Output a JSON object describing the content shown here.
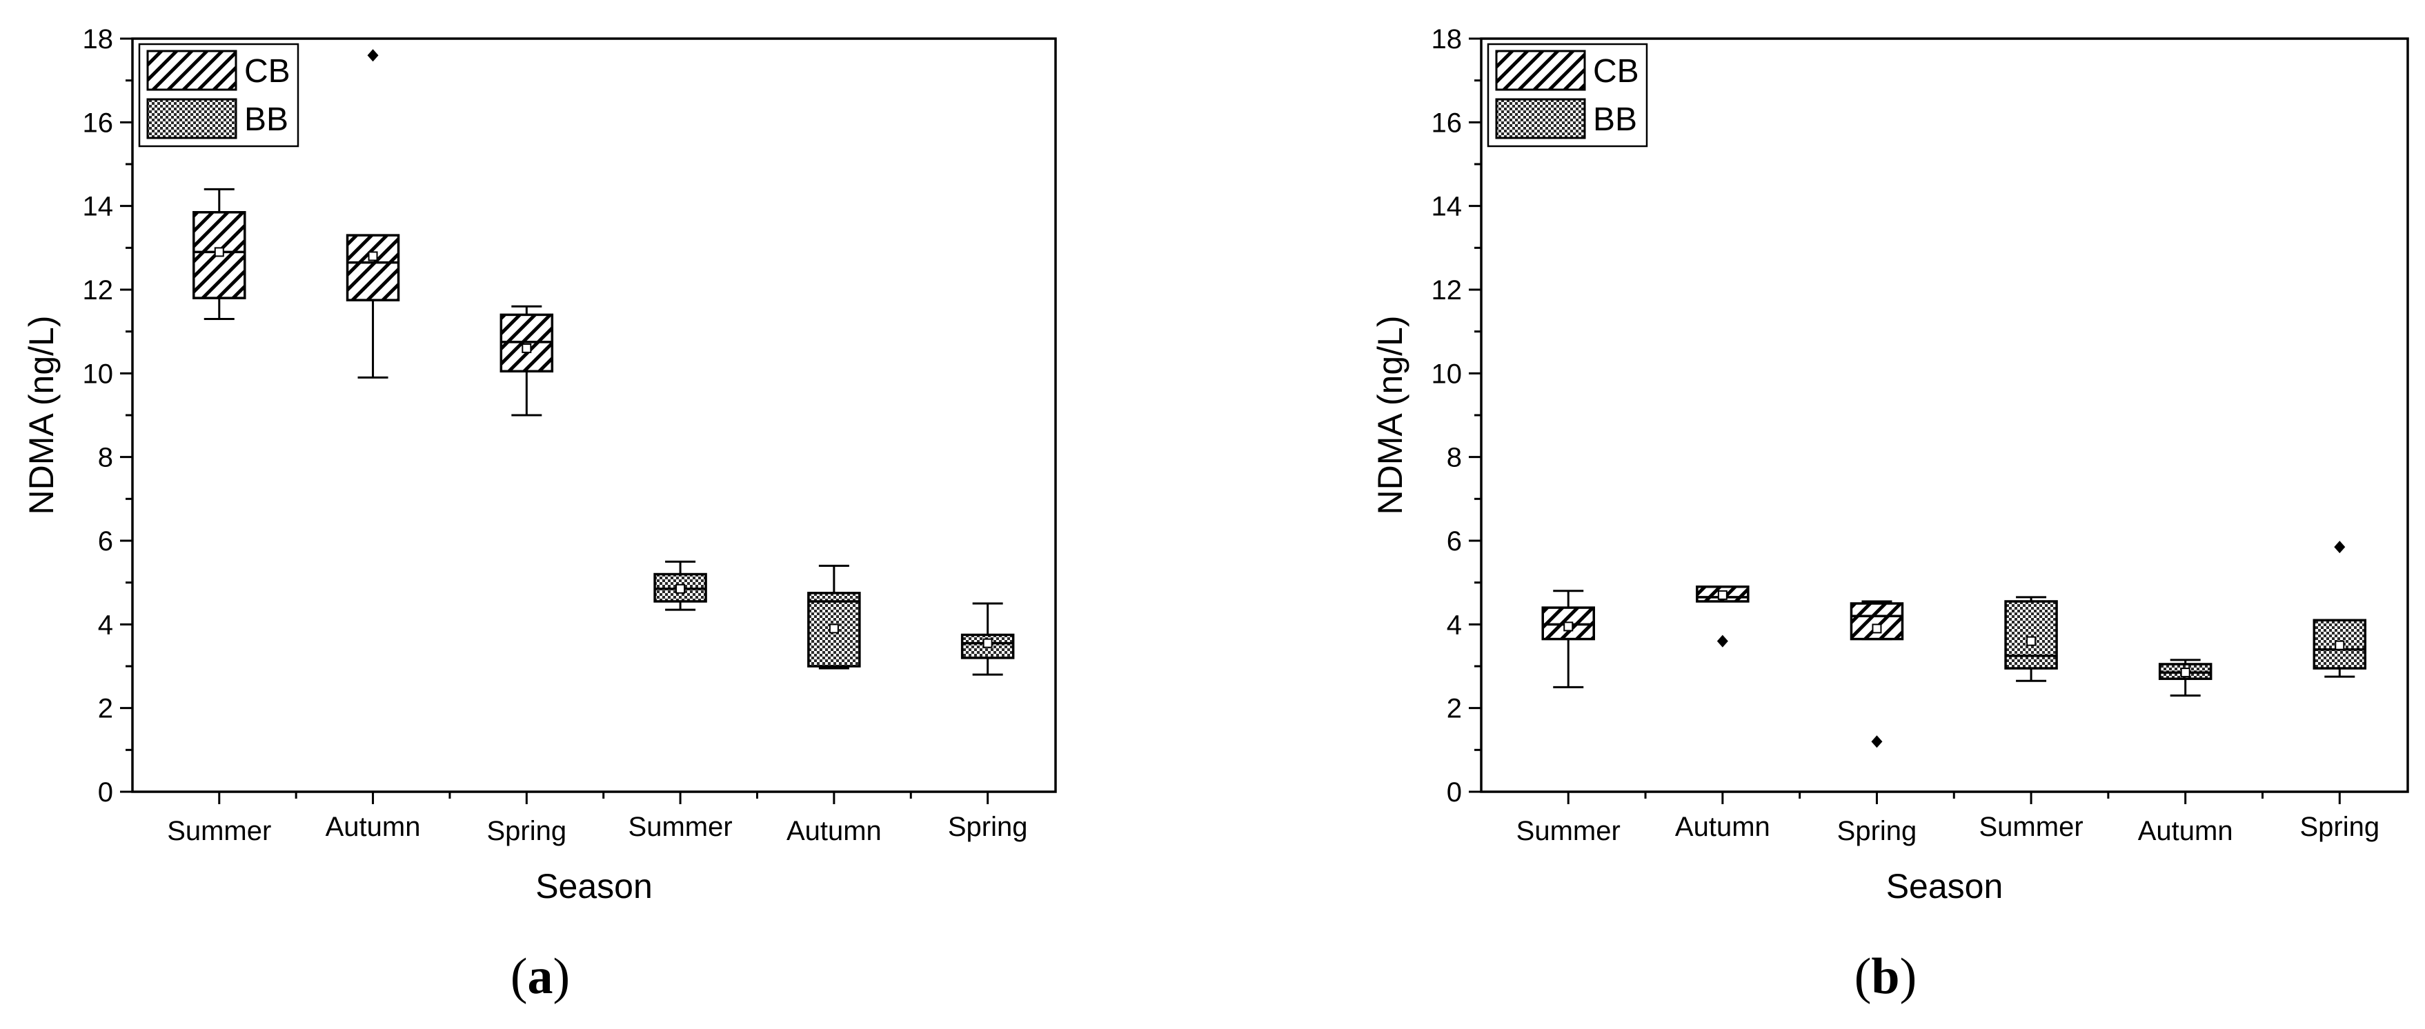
{
  "chart_data": [
    {
      "type": "box",
      "panel_label": "a",
      "xlabel": "Season",
      "ylabel": "NDMA (ng/L)",
      "ylim": [
        0,
        18
      ],
      "yticks": [
        0,
        2,
        4,
        6,
        8,
        10,
        12,
        14,
        16,
        18
      ],
      "categories": [
        "Summer",
        "Autumn",
        "Spring",
        "Summer",
        "Autumn",
        "Spring"
      ],
      "legend": {
        "position": "top-left",
        "entries": [
          {
            "name": "CB",
            "pattern": "hatch"
          },
          {
            "name": "BB",
            "pattern": "checker"
          }
        ]
      },
      "series": [
        {
          "name": "CB",
          "boxes": [
            {
              "category": "Summer",
              "min": 11.3,
              "q1": 11.8,
              "median": 12.9,
              "mean": 12.9,
              "q3": 13.85,
              "max": 14.4,
              "outliers": []
            },
            {
              "category": "Autumn",
              "min": 9.9,
              "q1": 11.75,
              "median": 12.65,
              "mean": 12.8,
              "q3": 13.3,
              "max": 13.3,
              "outliers": [
                17.6
              ]
            },
            {
              "category": "Spring",
              "min": 9.0,
              "q1": 10.05,
              "median": 10.75,
              "mean": 10.6,
              "q3": 11.4,
              "max": 11.6,
              "outliers": []
            }
          ]
        },
        {
          "name": "BB",
          "boxes": [
            {
              "category": "Summer",
              "min": 4.35,
              "q1": 4.55,
              "median": 4.85,
              "mean": 4.85,
              "q3": 5.2,
              "max": 5.5,
              "outliers": []
            },
            {
              "category": "Autumn",
              "min": 2.95,
              "q1": 3.0,
              "median": 4.55,
              "mean": 3.9,
              "q3": 4.75,
              "max": 5.4,
              "outliers": []
            },
            {
              "category": "Spring",
              "min": 2.8,
              "q1": 3.2,
              "median": 3.55,
              "mean": 3.55,
              "q3": 3.75,
              "max": 4.5,
              "outliers": []
            }
          ]
        }
      ]
    },
    {
      "type": "box",
      "panel_label": "b",
      "xlabel": "Season",
      "ylabel": "NDMA (ng/L)",
      "ylim": [
        0,
        18
      ],
      "yticks": [
        0,
        2,
        4,
        6,
        8,
        10,
        12,
        14,
        16,
        18
      ],
      "categories": [
        "Summer",
        "Autumn",
        "Spring",
        "Summer",
        "Autumn",
        "Spring"
      ],
      "legend": {
        "position": "top-left",
        "entries": [
          {
            "name": "CB",
            "pattern": "hatch"
          },
          {
            "name": "BB",
            "pattern": "checker"
          }
        ]
      },
      "series": [
        {
          "name": "CB",
          "boxes": [
            {
              "category": "Summer",
              "min": 2.5,
              "q1": 3.65,
              "median": 4.0,
              "mean": 3.95,
              "q3": 4.4,
              "max": 4.8,
              "outliers": []
            },
            {
              "category": "Autumn",
              "min": 4.55,
              "q1": 4.55,
              "median": 4.65,
              "mean": 4.7,
              "q3": 4.9,
              "max": 4.9,
              "outliers": [
                3.6
              ]
            },
            {
              "category": "Spring",
              "min": 3.65,
              "q1": 3.65,
              "median": 4.2,
              "mean": 3.9,
              "q3": 4.5,
              "max": 4.55,
              "outliers": [
                1.2
              ]
            }
          ]
        },
        {
          "name": "BB",
          "boxes": [
            {
              "category": "Summer",
              "min": 2.65,
              "q1": 2.95,
              "median": 3.25,
              "mean": 3.6,
              "q3": 4.55,
              "max": 4.65,
              "outliers": []
            },
            {
              "category": "Autumn",
              "min": 2.3,
              "q1": 2.7,
              "median": 2.85,
              "mean": 2.85,
              "q3": 3.05,
              "max": 3.15,
              "outliers": []
            },
            {
              "category": "Spring",
              "min": 2.75,
              "q1": 2.95,
              "median": 3.4,
              "mean": 3.5,
              "q3": 4.1,
              "max": 4.1,
              "outliers": [
                5.85
              ]
            }
          ]
        }
      ]
    }
  ]
}
